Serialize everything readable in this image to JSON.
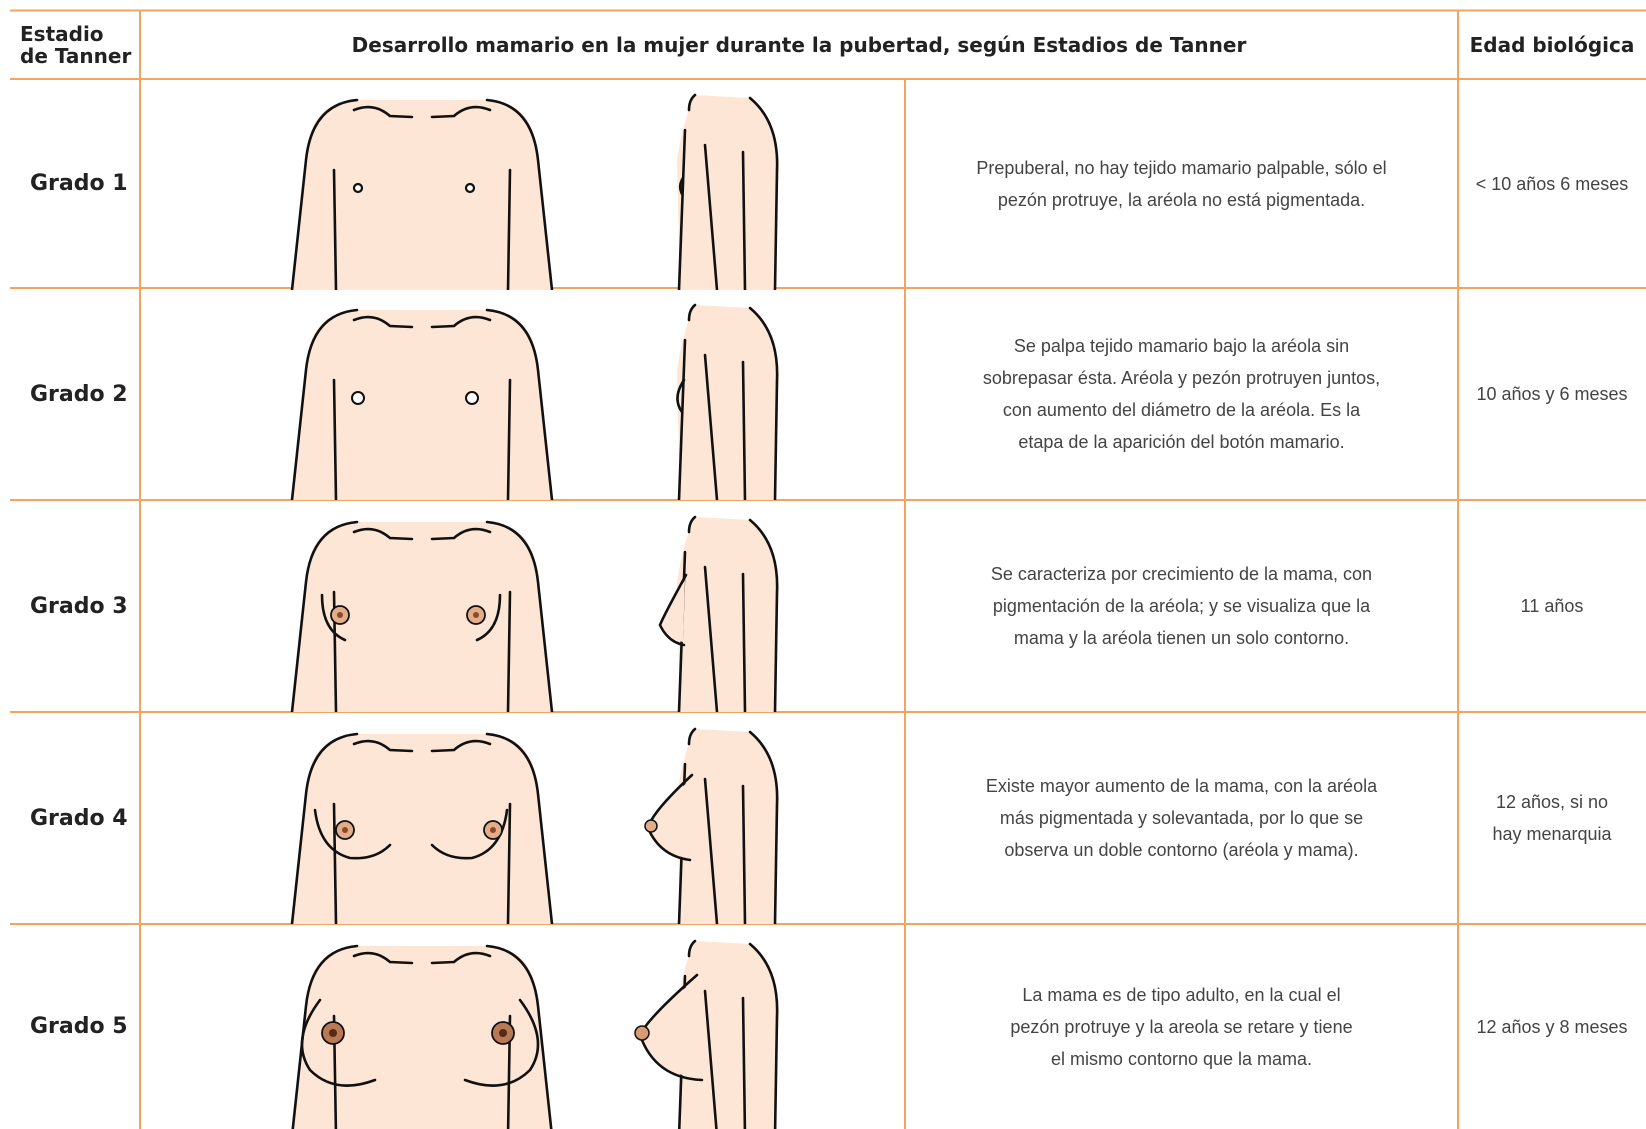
{
  "table": {
    "header": {
      "stage": [
        "Estadio",
        "de Tanner"
      ],
      "title": "Desarrollo mamario en la mujer durante la pubertad, según Estadios de Tanner",
      "age": "Edad biológica"
    },
    "rows": [
      {
        "stage": "Grado 1",
        "description": [
          "Prepuberal, no hay tejido mamario palpable, sólo el",
          "pezón protruye, la aréola no está pigmentada."
        ],
        "age": [
          "< 10 años 6 meses"
        ]
      },
      {
        "stage": "Grado 2",
        "description": [
          "Se palpa tejido mamario bajo la aréola sin",
          "sobrepasar ésta. Aréola y pezón protruyen juntos,",
          "con aumento del diámetro de la aréola. Es la",
          "etapa de la aparición del botón mamario."
        ],
        "age": [
          "10 años y 6 meses"
        ]
      },
      {
        "stage": "Grado 3",
        "description": [
          "Se caracteriza por crecimiento de la mama, con",
          "pigmentación de la aréola; y se visualiza que la",
          "mama y la aréola tienen un solo contorno."
        ],
        "age": [
          "11 años"
        ]
      },
      {
        "stage": "Grado 4",
        "description": [
          "Existe mayor aumento de la mama, con la aréola",
          "más pigmentada y solevantada, por lo que se",
          "observa un doble contorno (aréola y mama)."
        ],
        "age": [
          "12 años, si no",
          "hay menarquia"
        ]
      },
      {
        "stage": "Grado 5",
        "description": [
          "La mama es de tipo adulto, en la cual el",
          "pezón protruye y la areola se retare y tiene",
          "el mismo contorno que la mama."
        ],
        "age": [
          "12 años y 8 meses"
        ]
      }
    ]
  }
}
